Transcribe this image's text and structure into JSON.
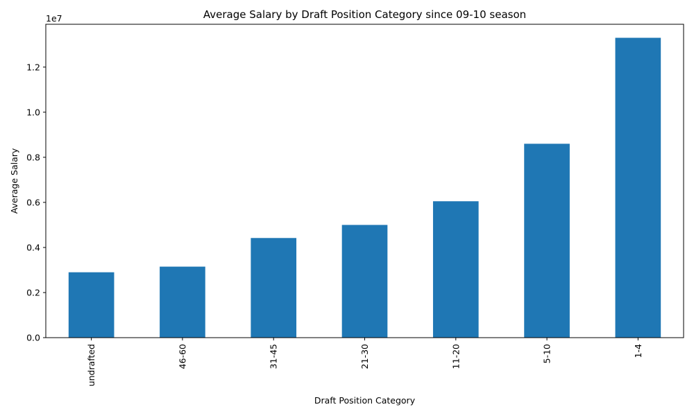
{
  "chart_data": {
    "type": "bar",
    "title": "Average Salary by Draft Position Category since 09-10 season",
    "xlabel": "Draft Position Category",
    "ylabel": "Average Salary",
    "offset_text": "1e7",
    "categories": [
      "undrafted",
      "46-60",
      "31-45",
      "21-30",
      "11-20",
      "5-10",
      "1-4"
    ],
    "values": [
      2900000,
      3150000,
      4420000,
      5000000,
      6050000,
      8600000,
      13300000
    ],
    "ylim": [
      0,
      13900000
    ],
    "yticks": [
      0,
      2000000,
      4000000,
      6000000,
      8000000,
      10000000,
      12000000
    ],
    "ytick_labels": [
      "0.0",
      "0.2",
      "0.4",
      "0.6",
      "0.8",
      "1.0",
      "1.2"
    ],
    "grid": false,
    "bar_color": "#1f77b4"
  }
}
